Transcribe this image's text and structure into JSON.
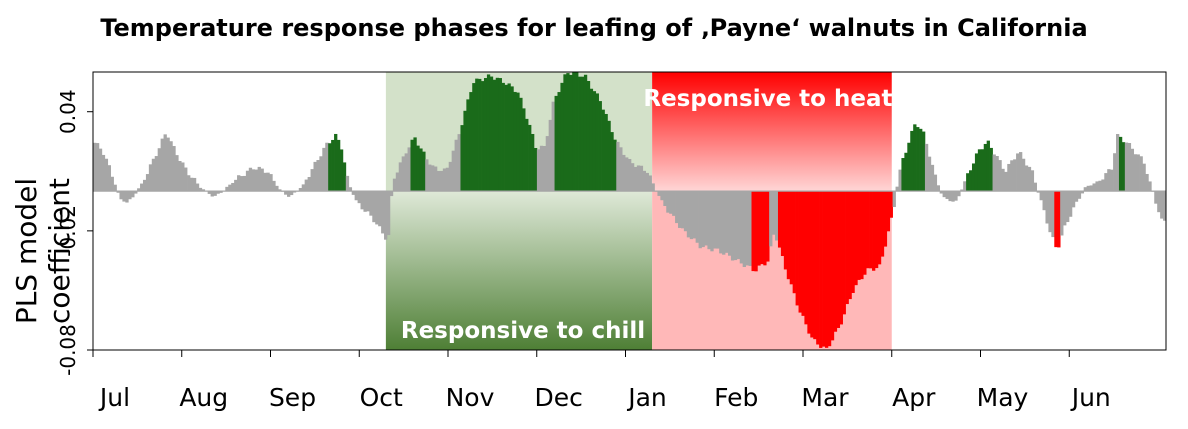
{
  "chart_data": {
    "type": "bar",
    "title": "Temperature response phases for leafing of ‚Payne‘ walnuts in California",
    "ylabel": "PLS model coefficient",
    "xlabel": "",
    "ylim": [
      -0.08,
      0.06
    ],
    "yticks": [
      0.04,
      -0.02,
      -0.08
    ],
    "ytick_labels": [
      "0.04",
      "-0.02",
      "-0.08"
    ],
    "month_ticks": [
      "Jul",
      "Aug",
      "Sep",
      "Oct",
      "Nov",
      "Dec",
      "Jan",
      "Feb",
      "Mar",
      "Apr",
      "May",
      "Jun"
    ],
    "grid": false,
    "phases": [
      {
        "label": "Responsive to chill",
        "start_month": 3.3,
        "end_month": 6.3,
        "color": "#548235"
      },
      {
        "label": "Responsive to heat",
        "start_month": 6.3,
        "end_month": 9.0,
        "color": "#ff0000"
      }
    ],
    "coefficient_profile_by_month": [
      {
        "month": 0.0,
        "value": 0.025
      },
      {
        "month": 0.1,
        "value": 0.021
      },
      {
        "month": 0.2,
        "value": 0.01
      },
      {
        "month": 0.3,
        "value": -0.004
      },
      {
        "month": 0.4,
        "value": -0.006
      },
      {
        "month": 0.55,
        "value": 0.004
      },
      {
        "month": 0.72,
        "value": 0.02
      },
      {
        "month": 0.82,
        "value": 0.03
      },
      {
        "month": 0.92,
        "value": 0.02
      },
      {
        "month": 1.05,
        "value": 0.01
      },
      {
        "month": 1.2,
        "value": 0.002
      },
      {
        "month": 1.35,
        "value": -0.003
      },
      {
        "month": 1.45,
        "value": 0.0
      },
      {
        "month": 1.6,
        "value": 0.006
      },
      {
        "month": 1.8,
        "value": 0.012
      },
      {
        "month": 1.95,
        "value": 0.01
      },
      {
        "month": 2.1,
        "value": 0.0
      },
      {
        "month": 2.2,
        "value": -0.003
      },
      {
        "month": 2.35,
        "value": 0.003
      },
      {
        "month": 2.5,
        "value": 0.015
      },
      {
        "month": 2.62,
        "value": 0.024
      },
      {
        "month": 2.72,
        "value": 0.028
      },
      {
        "month": 2.78,
        "value": 0.022
      },
      {
        "month": 2.85,
        "value": 0.005
      },
      {
        "month": 2.95,
        "value": -0.006
      },
      {
        "month": 3.05,
        "value": -0.01
      },
      {
        "month": 3.15,
        "value": -0.015
      },
      {
        "month": 3.25,
        "value": -0.022
      },
      {
        "month": 3.3,
        "value": -0.025
      },
      {
        "month": 3.35,
        "value": 0.005
      },
      {
        "month": 3.5,
        "value": 0.02
      },
      {
        "month": 3.6,
        "value": 0.027
      },
      {
        "month": 3.68,
        "value": 0.02
      },
      {
        "month": 3.8,
        "value": 0.012
      },
      {
        "month": 3.95,
        "value": 0.01
      },
      {
        "month": 4.1,
        "value": 0.03
      },
      {
        "month": 4.25,
        "value": 0.055
      },
      {
        "month": 4.45,
        "value": 0.058
      },
      {
        "month": 4.6,
        "value": 0.055
      },
      {
        "month": 4.75,
        "value": 0.05
      },
      {
        "month": 4.87,
        "value": 0.035
      },
      {
        "month": 4.95,
        "value": 0.022
      },
      {
        "month": 5.05,
        "value": 0.022
      },
      {
        "month": 5.15,
        "value": 0.045
      },
      {
        "month": 5.3,
        "value": 0.06
      },
      {
        "month": 5.5,
        "value": 0.058
      },
      {
        "month": 5.68,
        "value": 0.045
      },
      {
        "month": 5.85,
        "value": 0.025
      },
      {
        "month": 6.0,
        "value": 0.015
      },
      {
        "month": 6.2,
        "value": 0.01
      },
      {
        "month": 6.3,
        "value": 0.0
      },
      {
        "month": 6.4,
        "value": -0.008
      },
      {
        "month": 6.6,
        "value": -0.02
      },
      {
        "month": 6.8,
        "value": -0.028
      },
      {
        "month": 7.0,
        "value": -0.03
      },
      {
        "month": 7.2,
        "value": -0.035
      },
      {
        "month": 7.4,
        "value": -0.04
      },
      {
        "month": 7.55,
        "value": -0.035
      },
      {
        "month": 7.62,
        "value": -0.02
      },
      {
        "month": 7.75,
        "value": -0.04
      },
      {
        "month": 7.9,
        "value": -0.06
      },
      {
        "month": 8.05,
        "value": -0.075
      },
      {
        "month": 8.2,
        "value": -0.08
      },
      {
        "month": 8.35,
        "value": -0.068
      },
      {
        "month": 8.5,
        "value": -0.05
      },
      {
        "month": 8.65,
        "value": -0.04
      },
      {
        "month": 8.8,
        "value": -0.038
      },
      {
        "month": 8.95,
        "value": -0.01
      },
      {
        "month": 9.0,
        "value": 0.005
      },
      {
        "month": 9.05,
        "value": 0.015
      },
      {
        "month": 9.2,
        "value": 0.035
      },
      {
        "month": 9.3,
        "value": 0.028
      },
      {
        "month": 9.4,
        "value": 0.01
      },
      {
        "month": 9.5,
        "value": -0.003
      },
      {
        "month": 9.65,
        "value": -0.006
      },
      {
        "month": 9.75,
        "value": 0.005
      },
      {
        "month": 9.9,
        "value": 0.02
      },
      {
        "month": 10.0,
        "value": 0.025
      },
      {
        "month": 10.1,
        "value": 0.018
      },
      {
        "month": 10.2,
        "value": 0.01
      },
      {
        "month": 10.35,
        "value": 0.02
      },
      {
        "month": 10.5,
        "value": 0.01
      },
      {
        "month": 10.6,
        "value": -0.005
      },
      {
        "month": 10.7,
        "value": -0.02
      },
      {
        "month": 10.78,
        "value": -0.03
      },
      {
        "month": 10.85,
        "value": -0.02
      },
      {
        "month": 10.95,
        "value": -0.01
      },
      {
        "month": 11.1,
        "value": 0.002
      },
      {
        "month": 11.25,
        "value": 0.005
      },
      {
        "month": 11.4,
        "value": 0.012
      },
      {
        "month": 11.45,
        "value": 0.028
      },
      {
        "month": 11.55,
        "value": 0.025
      },
      {
        "month": 11.65,
        "value": 0.02
      },
      {
        "month": 11.75,
        "value": 0.015
      },
      {
        "month": 11.85,
        "value": 0.0
      },
      {
        "month": 11.95,
        "value": -0.015
      }
    ],
    "highlight_periods": [
      {
        "start": 2.62,
        "end": 2.82,
        "color": "#1a6b1a"
      },
      {
        "start": 3.55,
        "end": 3.7,
        "color": "#1a6b1a"
      },
      {
        "start": 4.1,
        "end": 4.95,
        "color": "#1a6b1a"
      },
      {
        "start": 5.15,
        "end": 5.85,
        "color": "#1a6b1a"
      },
      {
        "start": 7.35,
        "end": 7.55,
        "color": "#ff0000"
      },
      {
        "start": 7.65,
        "end": 8.95,
        "color": "#ff0000"
      },
      {
        "start": 9.05,
        "end": 9.3,
        "color": "#1a6b1a"
      },
      {
        "start": 9.75,
        "end": 10.05,
        "color": "#1a6b1a"
      },
      {
        "start": 10.75,
        "end": 10.8,
        "color": "#ff0000"
      },
      {
        "start": 11.48,
        "end": 11.55,
        "color": "#1a6b1a"
      }
    ],
    "colors": {
      "neutral": "#a6a6a6",
      "chill_important": "#1a6b1a",
      "heat_important": "#ff0000"
    }
  }
}
